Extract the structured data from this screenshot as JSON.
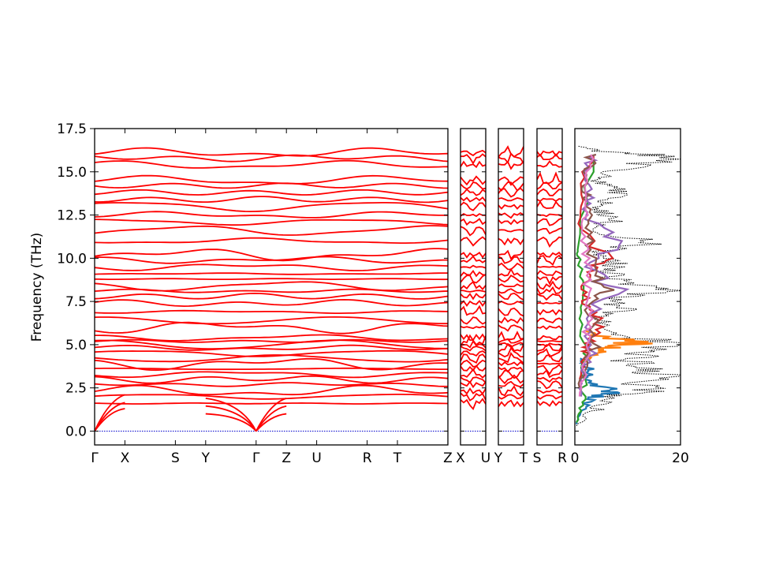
{
  "chart_data": {
    "type": "line",
    "ylabel": "Frequency (THz)",
    "ylim": [
      -0.8,
      17.5
    ],
    "yticks": [
      "0.0",
      "2.5",
      "5.0",
      "7.5",
      "10.0",
      "12.5",
      "15.0",
      "17.5"
    ],
    "ytick_values": [
      0.0,
      2.5,
      5.0,
      7.5,
      10.0,
      12.5,
      15.0,
      17.5
    ],
    "band_color": "#ff0000",
    "zero_line_color": "#0000cc",
    "band_panels": [
      {
        "labels": [
          "Γ",
          "X",
          "S",
          "Y",
          "Γ",
          "Z",
          "U",
          "R",
          "T",
          "Z"
        ],
        "segment_widths": [
          0.6,
          1.0,
          0.6,
          1.0,
          0.6,
          0.6,
          1.0,
          0.6,
          1.0
        ]
      },
      {
        "labels": [
          "X",
          "U"
        ],
        "segment_widths": [
          1.0
        ]
      },
      {
        "labels": [
          "Y",
          "T"
        ],
        "segment_widths": [
          1.0
        ]
      },
      {
        "labels": [
          "S",
          "R"
        ],
        "segment_widths": [
          1.0
        ]
      }
    ],
    "band_levels_thz": [
      1.6,
      2.0,
      2.3,
      2.7,
      3.0,
      3.3,
      3.6,
      3.9,
      4.2,
      4.5,
      4.8,
      5.0,
      5.2,
      5.4,
      6.0,
      6.4,
      6.9,
      7.4,
      7.8,
      8.1,
      8.4,
      8.8,
      9.1,
      9.5,
      9.9,
      10.2,
      11.0,
      11.6,
      12.1,
      12.5,
      13.0,
      13.4,
      13.8,
      14.2,
      14.5,
      15.4,
      15.8,
      16.1
    ],
    "dos": {
      "xticks": [
        "0",
        "20"
      ],
      "xtick_values": [
        0,
        20
      ],
      "xlim": [
        0,
        20
      ],
      "total_color": "#000000",
      "total": {
        "freq": [
          0.3,
          1.0,
          1.5,
          2.0,
          2.3,
          2.8,
          3.2,
          3.6,
          4.0,
          4.4,
          4.8,
          5.1,
          5.4,
          5.8,
          6.2,
          6.6,
          7.0,
          7.4,
          7.8,
          8.2,
          8.5,
          8.9,
          9.3,
          9.7,
          10.0,
          10.4,
          10.9,
          11.3,
          11.8,
          12.2,
          12.6,
          13.0,
          13.4,
          13.8,
          14.2,
          14.6,
          15.0,
          15.4,
          15.9,
          16.2,
          16.5
        ],
        "dos": [
          0.5,
          3.0,
          6.0,
          9.0,
          14.0,
          16.0,
          17.0,
          15.0,
          12.0,
          13.0,
          16.0,
          20.0,
          12.0,
          9.0,
          7.0,
          6.0,
          10.0,
          8.0,
          12.0,
          19.0,
          10.0,
          8.0,
          7.0,
          9.0,
          6.0,
          5.0,
          19.0,
          6.0,
          5.0,
          8.0,
          6.0,
          5.0,
          7.0,
          10.0,
          6.0,
          5.0,
          8.0,
          14.0,
          20.0,
          5.0,
          0.5
        ]
      },
      "projected": [
        {
          "color": "#1f77b4",
          "freq": [
            0.4,
            1.2,
            1.8,
            2.1,
            2.4,
            2.7,
            3.0,
            3.4,
            3.8,
            4.2
          ],
          "dos": [
            0.3,
            1.5,
            3.0,
            6.0,
            9.0,
            4.0,
            2.5,
            4.0,
            2.0,
            1.0
          ]
        },
        {
          "color": "#ff7f0e",
          "freq": [
            4.0,
            4.5,
            4.8,
            5.0,
            5.2,
            5.4,
            5.8
          ],
          "dos": [
            2.0,
            4.0,
            7.0,
            10.0,
            16.0,
            6.0,
            2.0
          ]
        },
        {
          "color": "#2ca02c",
          "freq": [
            0.5,
            1.5,
            2.5,
            3.5,
            4.5,
            6.5,
            8.5,
            9.8,
            10.5,
            15.9
          ],
          "dos": [
            0.5,
            1.5,
            2.0,
            1.5,
            2.5,
            1.0,
            1.5,
            1.0,
            0.5,
            3.5
          ]
        },
        {
          "color": "#d62728",
          "freq": [
            3.0,
            4.5,
            5.2,
            6.2,
            7.2,
            8.2,
            9.2,
            10.0,
            12.0,
            14.0,
            16.0
          ],
          "dos": [
            1.5,
            2.5,
            3.0,
            5.0,
            2.5,
            2.0,
            3.0,
            6.0,
            1.0,
            1.5,
            3.5
          ]
        },
        {
          "color": "#9467bd",
          "freq": [
            2.0,
            3.5,
            5.0,
            6.5,
            8.2,
            9.5,
            11.0,
            12.5,
            13.5,
            15.0,
            16.0
          ],
          "dos": [
            1.0,
            2.0,
            4.0,
            2.0,
            8.0,
            3.0,
            9.0,
            2.0,
            3.0,
            2.0,
            4.0
          ]
        },
        {
          "color": "#8c564b",
          "freq": [
            2.5,
            4.0,
            5.3,
            7.0,
            8.0,
            9.0,
            10.5,
            12.0,
            13.0,
            14.0,
            15.0,
            16.0
          ],
          "dos": [
            1.0,
            2.5,
            5.0,
            3.0,
            7.0,
            4.0,
            3.0,
            2.5,
            3.5,
            2.0,
            2.5,
            4.0
          ]
        },
        {
          "color": "#e377c2",
          "freq": [
            2.0,
            3.5,
            5.0,
            6.5,
            8.0,
            9.5,
            11.0,
            12.5,
            14.5,
            16.0
          ],
          "dos": [
            1.0,
            2.0,
            2.5,
            3.0,
            2.5,
            3.0,
            2.0,
            2.0,
            2.0,
            3.0
          ]
        }
      ]
    }
  }
}
